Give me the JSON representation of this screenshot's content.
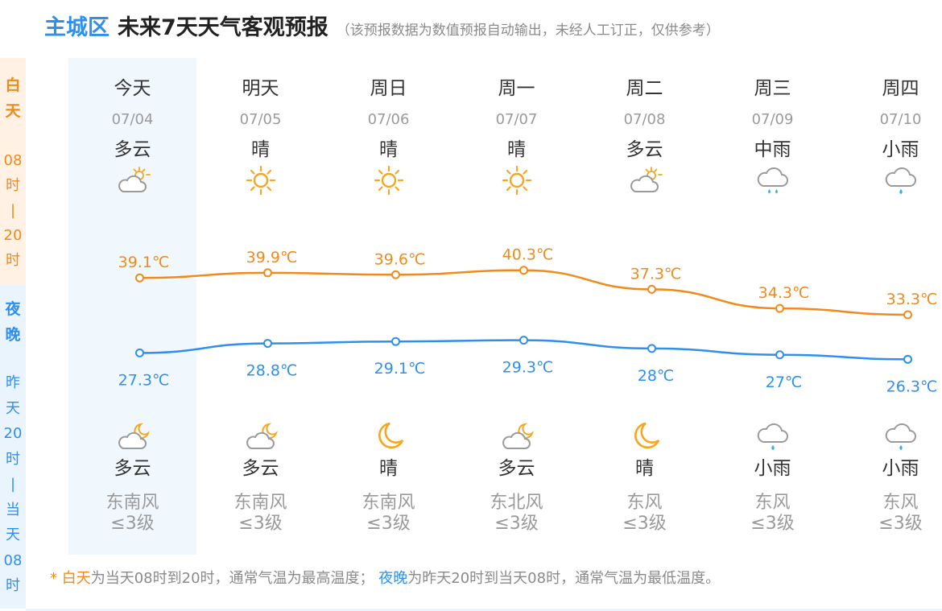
{
  "header": {
    "district": "主城区",
    "title": "未来7天天气客观预报",
    "note": "（该预报数据为数值预报自动输出，未经人工订正，仅供参考）"
  },
  "side": {
    "day_label": [
      "白",
      "天"
    ],
    "day_range": [
      "08",
      "时",
      "|",
      "20",
      "时"
    ],
    "night_label": [
      "夜",
      "晚"
    ],
    "night_range": [
      "昨",
      "天",
      "20",
      "时",
      "|",
      "当",
      "天",
      "08",
      "时"
    ]
  },
  "colors": {
    "day": "#f08a1b",
    "night": "#2f8ff0",
    "today_bg": "#f1f8fd"
  },
  "days": [
    {
      "name": "今天",
      "date": "07/04",
      "day_weather": "多云",
      "day_icon": "partly-cloudy-day-icon",
      "high": "39.1℃",
      "low": "27.3℃",
      "night_icon": "partly-cloudy-night-icon",
      "night_weather": "多云",
      "wind_dir": "东南风",
      "wind_level": "≤3级"
    },
    {
      "name": "明天",
      "date": "07/05",
      "day_weather": "晴",
      "day_icon": "sun-icon",
      "high": "39.9℃",
      "low": "28.8℃",
      "night_icon": "partly-cloudy-night-icon",
      "night_weather": "多云",
      "wind_dir": "东南风",
      "wind_level": "≤3级"
    },
    {
      "name": "周日",
      "date": "07/06",
      "day_weather": "晴",
      "day_icon": "sun-icon",
      "high": "39.6℃",
      "low": "29.1℃",
      "night_icon": "moon-icon",
      "night_weather": "晴",
      "wind_dir": "东南风",
      "wind_level": "≤3级"
    },
    {
      "name": "周一",
      "date": "07/07",
      "day_weather": "晴",
      "day_icon": "sun-icon",
      "high": "40.3℃",
      "low": "29.3℃",
      "night_icon": "partly-cloudy-night-icon",
      "night_weather": "多云",
      "wind_dir": "东北风",
      "wind_level": "≤3级"
    },
    {
      "name": "周二",
      "date": "07/08",
      "day_weather": "多云",
      "day_icon": "partly-cloudy-day-icon",
      "high": "37.3℃",
      "low": "28℃",
      "night_icon": "moon-icon",
      "night_weather": "晴",
      "wind_dir": "东风",
      "wind_level": "≤3级"
    },
    {
      "name": "周三",
      "date": "07/09",
      "day_weather": "中雨",
      "day_icon": "moderate-rain-icon",
      "high": "34.3℃",
      "low": "27℃",
      "night_icon": "light-rain-icon",
      "night_weather": "小雨",
      "wind_dir": "东风",
      "wind_level": "≤3级"
    },
    {
      "name": "周四",
      "date": "07/10",
      "day_weather": "小雨",
      "day_icon": "light-rain-icon",
      "high": "33.3℃",
      "low": "26.3℃",
      "night_icon": "light-rain-icon",
      "night_weather": "小雨",
      "wind_dir": "东风",
      "wind_level": "≤3级"
    }
  ],
  "chart_data": {
    "type": "line",
    "categories": [
      "07/04",
      "07/05",
      "07/06",
      "07/07",
      "07/08",
      "07/09",
      "07/10"
    ],
    "series": [
      {
        "values": [
          39.1,
          39.9,
          39.6,
          40.3,
          37.3,
          34.3,
          33.3
        ],
        "color": "#f08a1b"
      },
      {
        "values": [
          27.3,
          28.8,
          29.1,
          29.3,
          28,
          27,
          26.3
        ],
        "color": "#2f8ff0"
      }
    ]
  },
  "footer": {
    "star": "* ",
    "day_term": "白天",
    "day_text": "为当天08时到20时，通常气温为最高温度；",
    "night_term": "夜晚",
    "night_text": "为昨天20时到当天08时，通常气温为最低温度。"
  }
}
